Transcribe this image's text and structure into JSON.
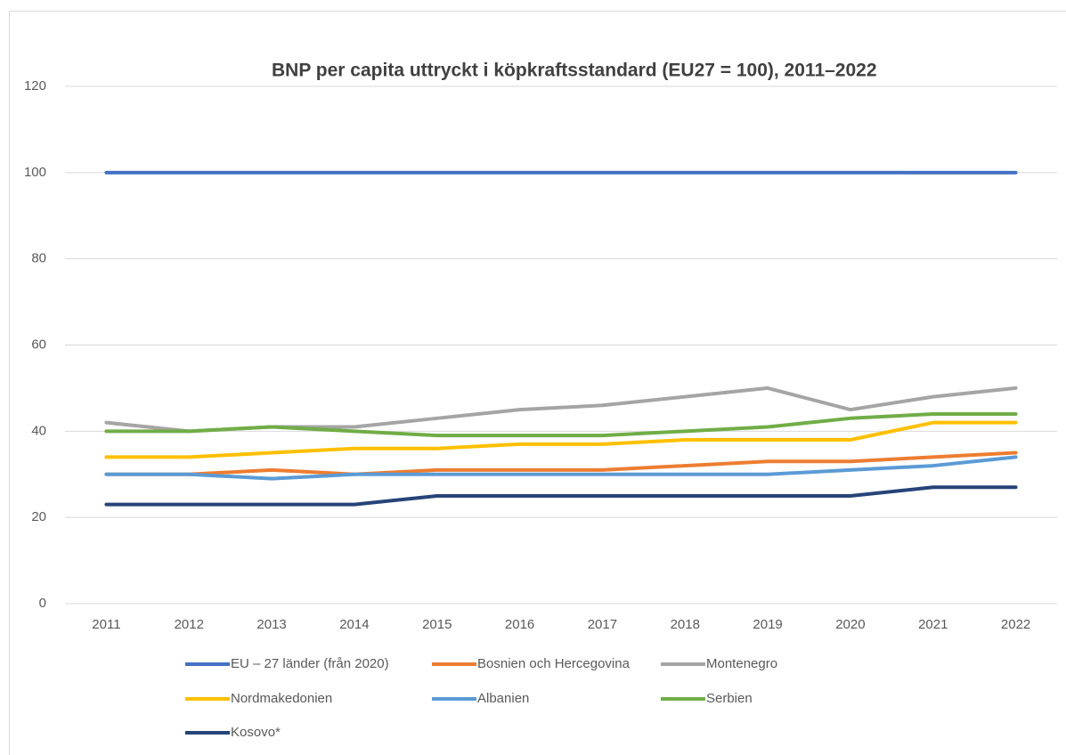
{
  "chart_data": {
    "type": "line",
    "title": "BNP per capita uttryckt i köpkraftsstandard (EU27 = 100), 2011–2022",
    "categories": [
      "2011",
      "2012",
      "2013",
      "2014",
      "2015",
      "2016",
      "2017",
      "2018",
      "2019",
      "2020",
      "2021",
      "2022"
    ],
    "ylim": [
      0,
      120
    ],
    "yticks": [
      0,
      20,
      40,
      60,
      80,
      100,
      120
    ],
    "grid": true,
    "legend": "bottom",
    "series": [
      {
        "name": "EU – 27 länder (från 2020)",
        "color": "#4472c4",
        "values": [
          100,
          100,
          100,
          100,
          100,
          100,
          100,
          100,
          100,
          100,
          100,
          100
        ]
      },
      {
        "name": "Bosnien och Hercegovina",
        "color": "#ed7d31",
        "values": [
          30,
          30,
          31,
          30,
          31,
          31,
          31,
          32,
          33,
          33,
          34,
          35
        ]
      },
      {
        "name": "Montenegro",
        "color": "#a5a5a5",
        "values": [
          42,
          40,
          41,
          41,
          43,
          45,
          46,
          48,
          50,
          45,
          48,
          50
        ]
      },
      {
        "name": "Nordmakedonien",
        "color": "#ffc000",
        "values": [
          34,
          34,
          35,
          36,
          36,
          37,
          37,
          38,
          38,
          38,
          42,
          42
        ]
      },
      {
        "name": "Albanien",
        "color": "#5b9bd5",
        "values": [
          30,
          30,
          29,
          30,
          30,
          30,
          30,
          30,
          30,
          31,
          32,
          34
        ]
      },
      {
        "name": "Serbien",
        "color": "#70ad47",
        "values": [
          40,
          40,
          41,
          40,
          39,
          39,
          39,
          40,
          41,
          43,
          44,
          44
        ]
      },
      {
        "name": "Kosovo*",
        "color": "#264478",
        "values": [
          23,
          23,
          23,
          23,
          25,
          25,
          25,
          25,
          25,
          25,
          27,
          27
        ]
      }
    ]
  }
}
